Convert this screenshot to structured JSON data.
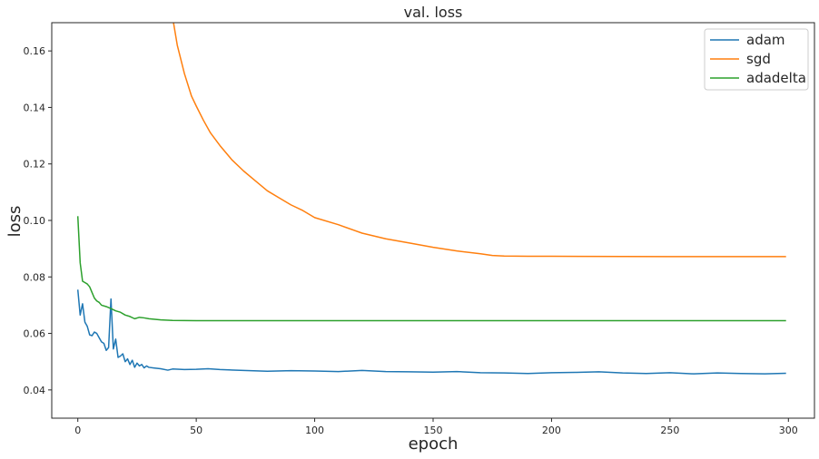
{
  "chart_data": {
    "type": "line",
    "title": "val. loss",
    "xlabel": "epoch",
    "ylabel": "loss",
    "xlim": [
      -11,
      311
    ],
    "ylim": [
      0.03,
      0.17
    ],
    "xticks": [
      0,
      50,
      100,
      150,
      200,
      250,
      300
    ],
    "yticks": [
      0.04,
      0.06,
      0.08,
      0.1,
      0.12,
      0.14,
      0.16
    ],
    "ytick_labels": [
      "0.04",
      "0.06",
      "0.08",
      "0.10",
      "0.12",
      "0.14",
      "0.16"
    ],
    "grid": false,
    "legend_position": "top-right",
    "series": [
      {
        "name": "adam",
        "color": "#1f77b4",
        "x": [
          0,
          1,
          2,
          3,
          4,
          5,
          6,
          7,
          8,
          9,
          10,
          11,
          12,
          13,
          14,
          15,
          16,
          17,
          18,
          19,
          20,
          21,
          22,
          23,
          24,
          25,
          26,
          27,
          28,
          29,
          30,
          32,
          35,
          38,
          40,
          45,
          50,
          55,
          60,
          70,
          80,
          90,
          100,
          110,
          120,
          130,
          140,
          150,
          160,
          170,
          180,
          190,
          200,
          210,
          220,
          230,
          240,
          250,
          260,
          270,
          280,
          290,
          299
        ],
        "y": [
          0.0755,
          0.0665,
          0.0705,
          0.064,
          0.0625,
          0.0595,
          0.0592,
          0.0605,
          0.06,
          0.0585,
          0.057,
          0.0565,
          0.054,
          0.055,
          0.0722,
          0.0545,
          0.058,
          0.0515,
          0.052,
          0.0528,
          0.05,
          0.051,
          0.049,
          0.0505,
          0.048,
          0.0495,
          0.0485,
          0.049,
          0.0478,
          0.0485,
          0.048,
          0.0478,
          0.0475,
          0.047,
          0.0474,
          0.0472,
          0.0473,
          0.0475,
          0.0472,
          0.0469,
          0.0466,
          0.0468,
          0.0467,
          0.0465,
          0.0469,
          0.0465,
          0.0464,
          0.0463,
          0.0465,
          0.0461,
          0.046,
          0.0458,
          0.0461,
          0.0462,
          0.0464,
          0.046,
          0.0458,
          0.0461,
          0.0457,
          0.046,
          0.0458,
          0.0457,
          0.0459
        ]
      },
      {
        "name": "sgd",
        "color": "#ff7f0e",
        "x": [
          40,
          42,
          45,
          48,
          50,
          53,
          56,
          60,
          65,
          70,
          75,
          80,
          85,
          90,
          95,
          100,
          110,
          120,
          130,
          140,
          150,
          160,
          170,
          175,
          180,
          190,
          200,
          250,
          299
        ],
        "y": [
          0.172,
          0.162,
          0.152,
          0.144,
          0.1405,
          0.1355,
          0.131,
          0.1265,
          0.1215,
          0.1175,
          0.114,
          0.1105,
          0.108,
          0.1055,
          0.1035,
          0.101,
          0.0985,
          0.0955,
          0.0935,
          0.092,
          0.0905,
          0.0892,
          0.0882,
          0.0876,
          0.0874,
          0.0873,
          0.0873,
          0.0872,
          0.0872
        ]
      },
      {
        "name": "adadelta",
        "color": "#2ca02c",
        "x": [
          0,
          1,
          2,
          3,
          4,
          5,
          6,
          7,
          8,
          9,
          10,
          12,
          14,
          16,
          18,
          20,
          22,
          24,
          26,
          28,
          30,
          35,
          40,
          50,
          100,
          150,
          200,
          250,
          299
        ],
        "y": [
          0.1015,
          0.085,
          0.0785,
          0.078,
          0.0775,
          0.0765,
          0.0745,
          0.0725,
          0.0715,
          0.071,
          0.07,
          0.0695,
          0.0688,
          0.068,
          0.0675,
          0.0665,
          0.066,
          0.0652,
          0.0657,
          0.0655,
          0.0652,
          0.0648,
          0.0646,
          0.0645,
          0.0645,
          0.0645,
          0.0645,
          0.0645,
          0.0645
        ]
      }
    ]
  }
}
